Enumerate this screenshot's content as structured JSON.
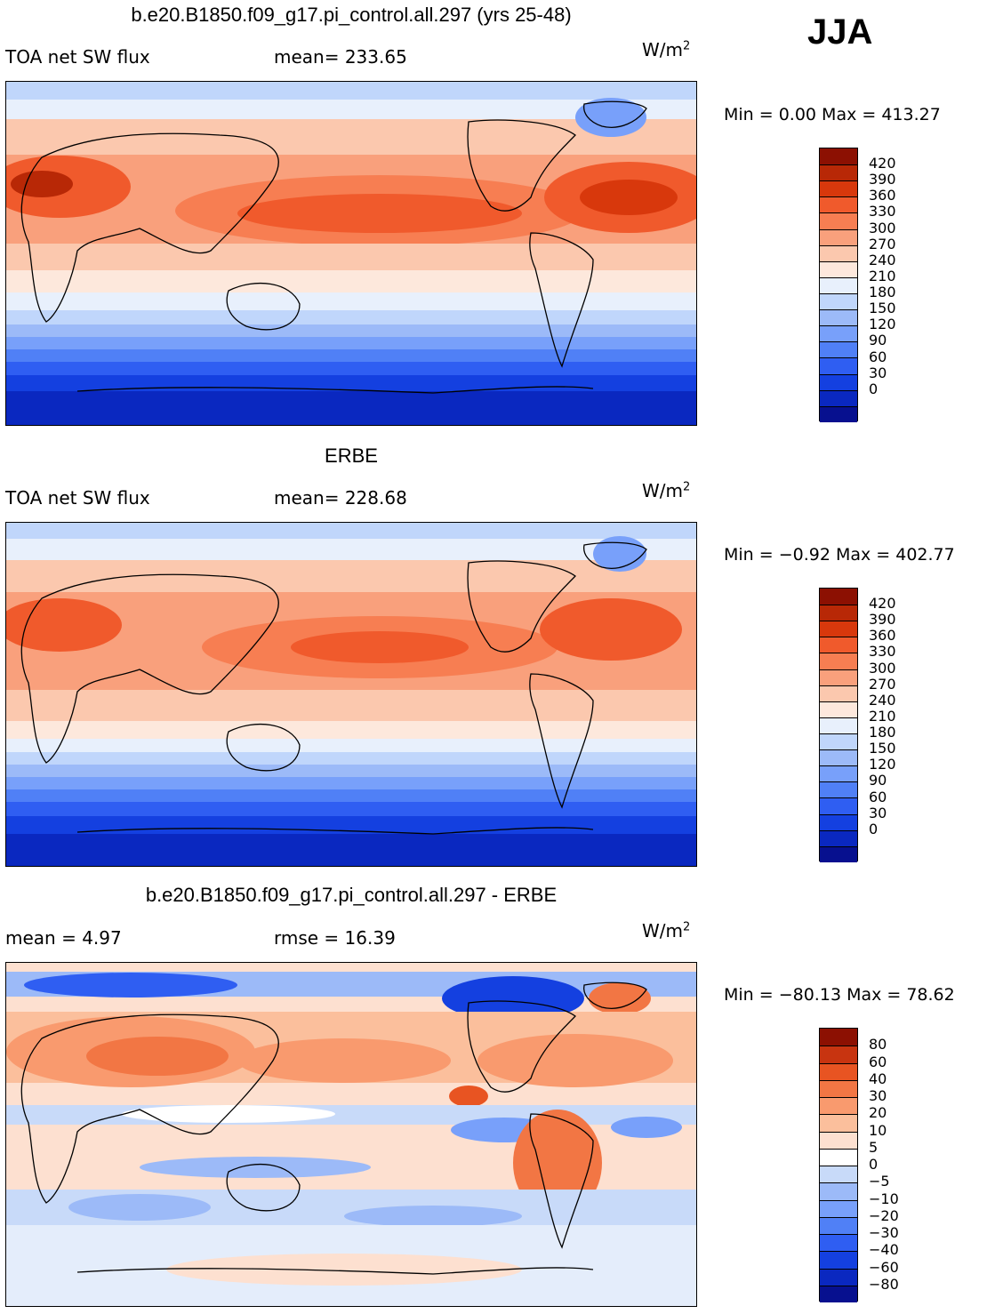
{
  "season": "JJA",
  "colors": {
    "abs": [
      "#07108f",
      "#0a28c0",
      "#1440e0",
      "#2f5ef2",
      "#5080f6",
      "#78a0fa",
      "#9cbaf8",
      "#c0d6fb",
      "#e8f0fc",
      "#fde8dc",
      "#fbc8ae",
      "#f9a07c",
      "#f77e52",
      "#f05a2c",
      "#d8380c",
      "#b82806",
      "#8c1002"
    ],
    "diff": [
      "#07108f",
      "#0a28c0",
      "#1440e0",
      "#2f5ef2",
      "#5080f6",
      "#78a0fa",
      "#9cbaf8",
      "#c8daf9",
      "#ffffff",
      "#fde0d0",
      "#fbbf9c",
      "#f99a6e",
      "#f27644",
      "#e85422",
      "#c83410",
      "#8c1002"
    ]
  },
  "panels": [
    {
      "title": "b.e20.B1850.f09_g17.pi_control.all.297 (yrs 25-48)",
      "left_label": "TOA net SW flux",
      "stat_label": "mean= 233.65",
      "units": "W/m",
      "units_sup": "2",
      "minmax": "Min =    0.00  Max =  413.27",
      "levels": [
        "420",
        "390",
        "360",
        "330",
        "300",
        "270",
        "240",
        "210",
        "180",
        "150",
        "120",
        "90",
        "60",
        "30",
        "0"
      ]
    },
    {
      "title": "ERBE",
      "left_label": "TOA net SW flux",
      "stat_label": "mean= 228.68",
      "units": "W/m",
      "units_sup": "2",
      "minmax": "Min =  −0.92  Max =  402.77",
      "levels": [
        "420",
        "390",
        "360",
        "330",
        "300",
        "270",
        "240",
        "210",
        "180",
        "150",
        "120",
        "90",
        "60",
        "30",
        "0"
      ]
    },
    {
      "title": "b.e20.B1850.f09_g17.pi_control.all.297 - ERBE",
      "left_label": "mean =    4.97",
      "stat_label": "rmse =   16.39",
      "units": "W/m",
      "units_sup": "2",
      "minmax": "Min = −80.13  Max =   78.62",
      "levels": [
        "80",
        "60",
        "40",
        "30",
        "20",
        "10",
        "5",
        "0",
        "−5",
        "−10",
        "−20",
        "−30",
        "−40",
        "−60",
        "−80"
      ]
    }
  ]
}
